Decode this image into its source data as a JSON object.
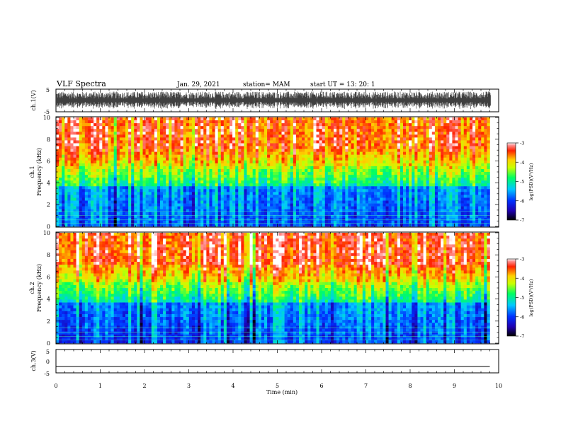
{
  "header": {
    "title": "VLF Spectra",
    "date": "Jan. 29, 2021",
    "station": "station= MAM",
    "start": "start  UT  =   13: 20: 1"
  },
  "chart_data": [
    {
      "type": "line",
      "name": "ch1-waveform",
      "ylabel": "ch.1(V)",
      "ylim": [
        -5,
        5
      ],
      "yticks": [
        "5",
        "-5"
      ],
      "xlim": [
        0,
        10
      ],
      "note_amplitude_fraction": 0.9
    },
    {
      "type": "heatmap",
      "name": "ch1-spectrogram",
      "ylabel_top": "ch.1",
      "ylabel": "Frequency  (kHz)",
      "ylim": [
        0,
        10
      ],
      "yticks": [
        "0",
        "2",
        "4",
        "6",
        "8",
        "10"
      ],
      "xlim": [
        0,
        9.8
      ],
      "colorbar": {
        "label": "log(PSD)(V²/Hz)",
        "range": [
          -7,
          -3
        ],
        "ticks": [
          "-3",
          "-4",
          "-5",
          "-6",
          "-7"
        ]
      }
    },
    {
      "type": "heatmap",
      "name": "ch2-spectrogram",
      "ylabel_top": "ch.2",
      "ylabel": "Frequency  (kHz)",
      "ylim": [
        0,
        10
      ],
      "yticks": [
        "0",
        "2",
        "4",
        "6",
        "8",
        "10"
      ],
      "xlim": [
        0,
        9.8
      ],
      "colorbar": {
        "label": "log(PSD)(V²/Hz)",
        "range": [
          -7,
          -3
        ],
        "ticks": [
          "-3",
          "-4",
          "-5",
          "-6",
          "-7"
        ]
      }
    },
    {
      "type": "line",
      "name": "ch3-waveform",
      "ylabel": "ch.3(V)",
      "ylim": [
        -5,
        5
      ],
      "yticks": [
        "5",
        "0",
        "-5"
      ],
      "xlim": [
        0,
        10
      ],
      "x": [
        0,
        9.8
      ],
      "y": [
        -2,
        -2
      ]
    }
  ],
  "xaxis": {
    "label": "Time  (min)",
    "range": [
      0,
      10
    ],
    "ticks": [
      "0",
      "1",
      "2",
      "3",
      "4",
      "5",
      "6",
      "7",
      "8",
      "9",
      "10"
    ]
  },
  "colors": {
    "axis": "#000000",
    "background": "#ffffff"
  }
}
